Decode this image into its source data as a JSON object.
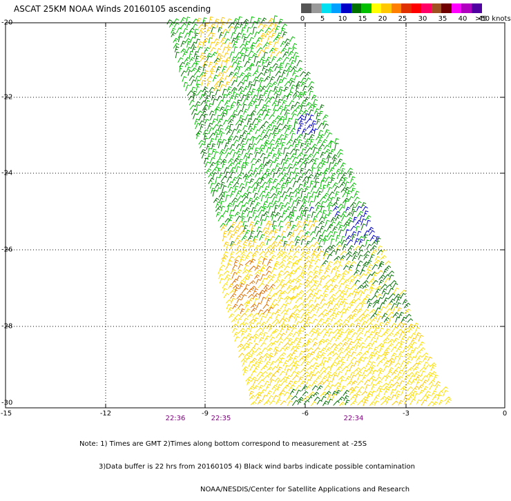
{
  "title": "ASCAT 25KM NOAA Winds 20160105 ascending",
  "colors": {
    "scale": [
      "#555555",
      "#999999",
      "#00e0f0",
      "#00a0ff",
      "#0000c8",
      "#007000",
      "#00c000",
      "#ffff00",
      "#ffc800",
      "#ff7f00",
      "#e03000",
      "#ff0000",
      "#ff0066",
      "#a05020",
      "#700000",
      "#ff00ff",
      "#b000c0",
      "#5000a0"
    ],
    "frame": "#000000",
    "grid": "#000000"
  },
  "scale_labels": [
    "0",
    "5",
    "10",
    "15",
    "20",
    "25",
    "30",
    "35",
    "40",
    "45",
    ">50 knots"
  ],
  "y_labels": [
    "-20",
    "-22",
    "-24",
    "-26",
    "-28",
    "-30"
  ],
  "x_labels": [
    "-15",
    "-12",
    "-9",
    "-6",
    "-3",
    "0"
  ],
  "time_labels": [
    "22:36",
    "22:35",
    "22:34"
  ],
  "notes": {
    "line1": "Note: 1) Times are GMT 2)Times along bottom correspond to measurement at -25S",
    "line2": "3)Data buffer is 22 hrs from 20160105 4) Black wind barbs indicate possible contamination",
    "line3": "NOAA/NESDIS/Center for Satellite Applications and Research"
  }
}
